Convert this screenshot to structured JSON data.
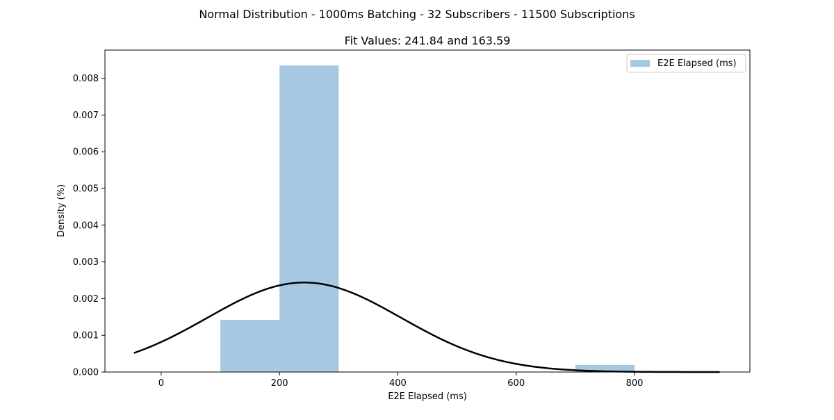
{
  "chart_data": {
    "type": "bar",
    "suptitle": "Normal Distribution - 1000ms Batching - 32 Subscribers - 11500 Subscriptions",
    "title": "Fit Values: 241.84 and 163.59",
    "xlabel": "E2E Elapsed (ms)",
    "ylabel": "Density (%)",
    "xlim": [
      -95,
      995
    ],
    "ylim": [
      0,
      0.00877
    ],
    "xticks": [
      0,
      200,
      400,
      600,
      800
    ],
    "yticks": [
      0.0,
      0.001,
      0.002,
      0.003,
      0.004,
      0.005,
      0.006,
      0.007,
      0.008
    ],
    "ytick_labels": [
      "0.000",
      "0.001",
      "0.002",
      "0.003",
      "0.004",
      "0.005",
      "0.006",
      "0.007",
      "0.008"
    ],
    "legend_position": "top-right",
    "grid": false,
    "histogram": {
      "name": "E2E Elapsed (ms)",
      "color": "#a6c8e0",
      "bin_edges": [
        0,
        100,
        200,
        300,
        400,
        500,
        600,
        700,
        800
      ],
      "values": [
        2.6e-06,
        0.00142,
        0.00835,
        8.7e-06,
        0,
        0,
        0,
        0.00019
      ]
    },
    "fit_curve": {
      "type": "normal_pdf",
      "mean": 241.84,
      "std": 163.59,
      "x_range": [
        -46,
        944
      ],
      "color": "#000000"
    }
  }
}
